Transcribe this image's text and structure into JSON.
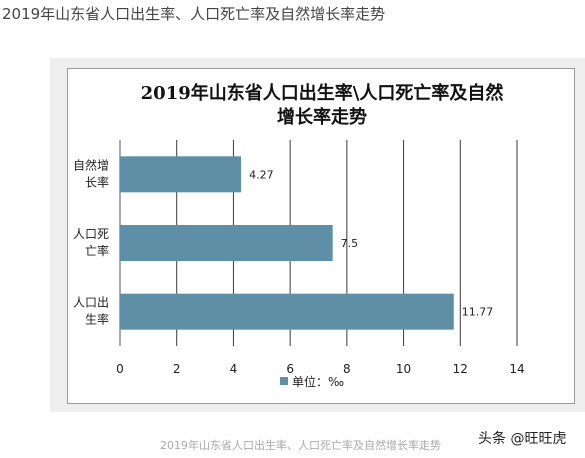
{
  "page": {
    "heading": "2019年山东省人口出生率、人口死亡率及自然增长率走势",
    "caption": "2019年山东省人口出生率、人口死亡率及自然增长率走势",
    "watermark": "头条 @旺旺虎"
  },
  "chart_data": {
    "type": "bar",
    "orientation": "horizontal",
    "title_lines": [
      "2019年山东省人口出生率\\人口死亡率及自然",
      "增长率走势"
    ],
    "categories": [
      {
        "lines": [
          "自然增",
          "长率"
        ],
        "value": 4.27,
        "label": "4.27"
      },
      {
        "lines": [
          "人口死",
          "亡率"
        ],
        "value": 7.5,
        "label": "7.5"
      },
      {
        "lines": [
          "人口出",
          "生率"
        ],
        "value": 11.77,
        "label": "11.77"
      }
    ],
    "xlim": [
      0,
      14
    ],
    "xticks": [
      0,
      2,
      4,
      6,
      8,
      10,
      12,
      14
    ],
    "grid": "vertical",
    "legend": {
      "label": "单位：‰",
      "position": "bottom"
    },
    "bar_color": "#5f8fa7"
  }
}
